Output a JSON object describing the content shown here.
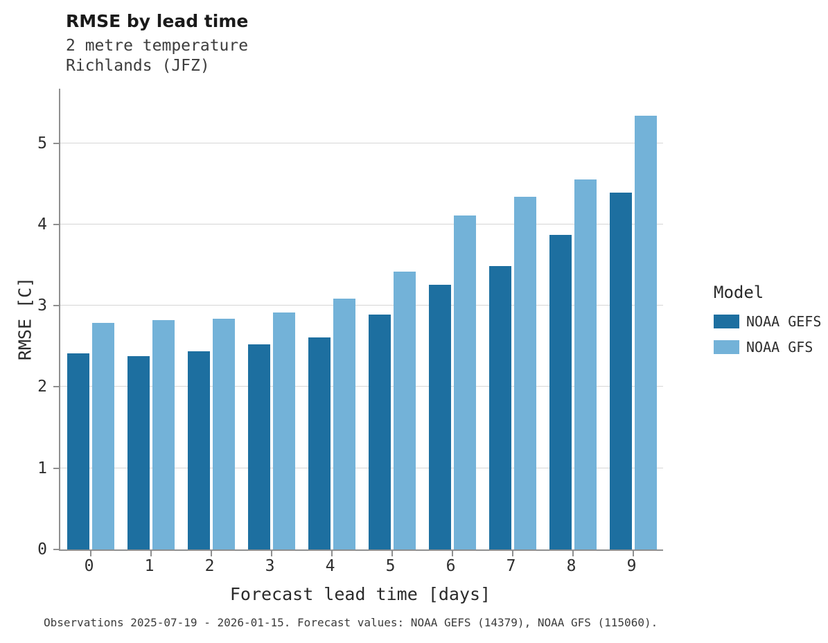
{
  "chart_data": {
    "type": "bar",
    "title": "RMSE by lead time",
    "subtitle1": "2 metre temperature",
    "subtitle2": "Richlands (JFZ)",
    "xlabel": "Forecast lead time [days]",
    "ylabel": "RMSE [C]",
    "categories": [
      "0",
      "1",
      "2",
      "3",
      "4",
      "5",
      "6",
      "7",
      "8",
      "9"
    ],
    "series": [
      {
        "name": "NOAA GEFS",
        "color": "#1d6fa0",
        "values": [
          2.41,
          2.38,
          2.44,
          2.52,
          2.61,
          2.89,
          3.26,
          3.49,
          3.87,
          4.39
        ]
      },
      {
        "name": "NOAA GFS",
        "color": "#73b2d8",
        "values": [
          2.79,
          2.82,
          2.84,
          2.92,
          3.09,
          3.42,
          4.11,
          4.34,
          4.55,
          5.34
        ]
      }
    ],
    "ylim": [
      0,
      5.67
    ],
    "yticks": [
      0,
      1,
      2,
      3,
      4,
      5
    ],
    "grid": "horizontal",
    "legend": {
      "title": "Model",
      "position": "right"
    },
    "caption": "Observations 2025-07-19 - 2026-01-15. Forecast values: NOAA GEFS (14379), NOAA GFS (115060)."
  }
}
